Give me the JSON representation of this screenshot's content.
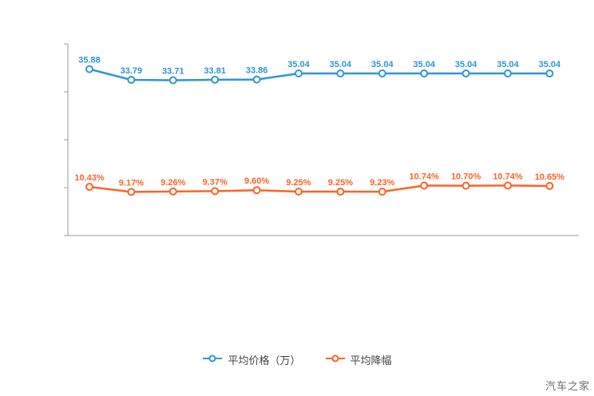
{
  "watermark": "汽车之家",
  "legend": {
    "items": [
      {
        "label": "平均价格（万）",
        "color": "#2e96d5"
      },
      {
        "label": "平均降幅",
        "color": "#fa6428"
      }
    ]
  },
  "chart_data": {
    "type": "line",
    "title": "",
    "xlabel": "",
    "ylabel": "",
    "grid": false,
    "legend_position": "bottom",
    "x": [
      1,
      2,
      3,
      4,
      5,
      6,
      7,
      8,
      9,
      10,
      11,
      12
    ],
    "x_tick_labels": [
      "",
      "",
      "",
      "",
      "",
      "",
      "",
      "",
      "",
      "",
      "",
      ""
    ],
    "series": [
      {
        "name": "平均价格（万）",
        "color": "#2e96d5",
        "values": [
          35.88,
          33.79,
          33.71,
          33.81,
          33.86,
          35.04,
          35.04,
          35.04,
          35.04,
          35.04,
          35.04,
          35.04
        ],
        "labels": [
          "35.88",
          "33.79",
          "33.71",
          "33.81",
          "33.86",
          "35.04",
          "35.04",
          "35.04",
          "35.04",
          "35.04",
          "35.04",
          "35.04"
        ]
      },
      {
        "name": "平均降幅",
        "color": "#fa6428",
        "values": [
          10.43,
          9.17,
          9.26,
          9.37,
          9.6,
          9.25,
          9.25,
          9.23,
          10.74,
          10.7,
          10.74,
          10.65
        ],
        "labels": [
          "10.43%",
          "9.17%",
          "9.26%",
          "9.37%",
          "9.60%",
          "9.25%",
          "9.25%",
          "9.23%",
          "10.74%",
          "10.70%",
          "10.74%",
          "10.65%"
        ]
      }
    ]
  }
}
